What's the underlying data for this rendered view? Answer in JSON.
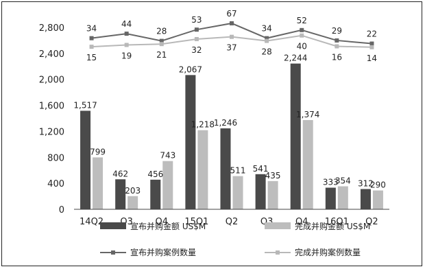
{
  "chart_data": {
    "type": "bar",
    "categories": [
      "14Q2",
      "Q3",
      "Q4",
      "15Q1",
      "Q2",
      "Q3",
      "Q4",
      "16Q1",
      "Q2"
    ],
    "ylim": [
      0,
      2800
    ],
    "yticks": [
      "0",
      "400",
      "800",
      "1,200",
      "1,600",
      "2,000",
      "2,400",
      "2,800"
    ],
    "bar_series": [
      {
        "name": "宣布并购金额 US$M",
        "color": "#4a4a4a",
        "values": [
          1517,
          462,
          456,
          2067,
          1246,
          541,
          2244,
          333,
          312
        ],
        "labels": [
          "1,517",
          "462",
          "456",
          "2,067",
          "1,246",
          "541",
          "2,244",
          "333",
          "312"
        ]
      },
      {
        "name": "完成并购金额 US$M",
        "color": "#bdbdbd",
        "values": [
          799,
          203,
          743,
          1218,
          511,
          435,
          1374,
          354,
          290
        ],
        "labels": [
          "799",
          "203",
          "743",
          "1,218",
          "511",
          "435",
          "1,374",
          "354",
          "290"
        ]
      }
    ],
    "line_series": [
      {
        "name": "宣布并购案例数量",
        "color": "#666666",
        "counts": [
          34,
          44,
          28,
          53,
          67,
          34,
          52,
          29,
          22
        ]
      },
      {
        "name": "完成并购案例数量",
        "color": "#b8b8b8",
        "counts": [
          15,
          19,
          21,
          32,
          37,
          28,
          40,
          16,
          14
        ]
      }
    ],
    "legend": "bottom"
  }
}
